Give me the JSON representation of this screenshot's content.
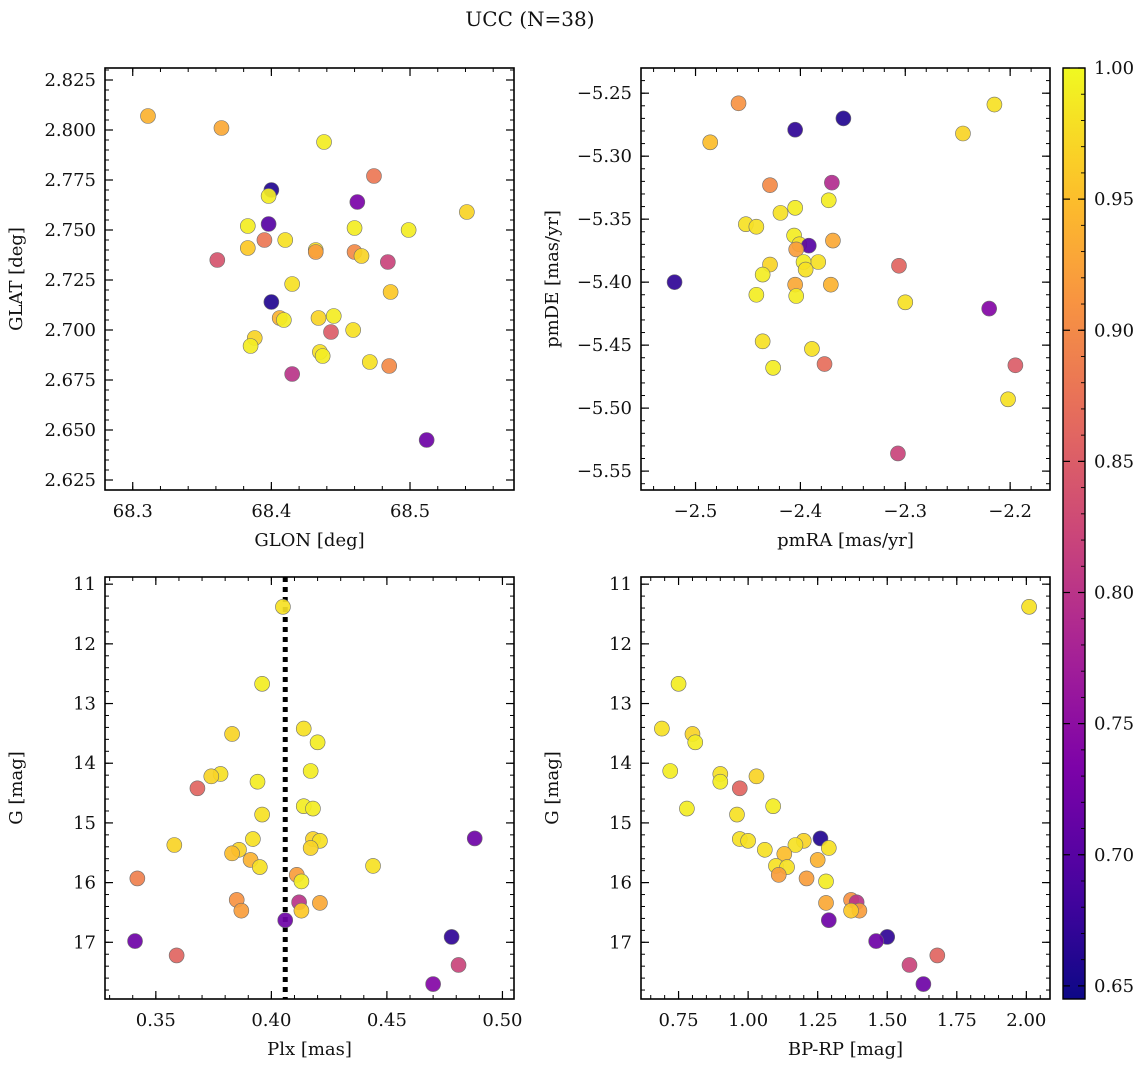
{
  "figure": {
    "title": "UCC (N=38)"
  },
  "colorbar": {
    "colormap": "plasma",
    "range": [
      0.645,
      1.0
    ],
    "ticks": [
      "1.00",
      "0.95",
      "0.90",
      "0.85",
      "0.80",
      "0.75",
      "0.70",
      "0.65"
    ]
  },
  "chart_data": [
    {
      "type": "scatter",
      "xlabel": "GLON [deg]",
      "ylabel": "GLAT [deg]",
      "xlim": [
        68.28,
        68.575
      ],
      "ylim": [
        2.62,
        2.831
      ],
      "xticks": [
        "68.3",
        "68.4",
        "68.5"
      ],
      "yticks": [
        "2.625",
        "2.650",
        "2.675",
        "2.700",
        "2.725",
        "2.750",
        "2.775",
        "2.800",
        "2.825"
      ],
      "points": [
        {
          "x": 68.311,
          "y": 2.807,
          "c": 0.94
        },
        {
          "x": 68.364,
          "y": 2.801,
          "c": 0.93
        },
        {
          "x": 68.438,
          "y": 2.794,
          "c": 0.99
        },
        {
          "x": 68.474,
          "y": 2.777,
          "c": 0.88
        },
        {
          "x": 68.4,
          "y": 2.77,
          "c": 0.66
        },
        {
          "x": 68.398,
          "y": 2.767,
          "c": 0.99
        },
        {
          "x": 68.462,
          "y": 2.764,
          "c": 0.73
        },
        {
          "x": 68.541,
          "y": 2.759,
          "c": 0.97
        },
        {
          "x": 68.398,
          "y": 2.753,
          "c": 0.7
        },
        {
          "x": 68.383,
          "y": 2.752,
          "c": 0.99
        },
        {
          "x": 68.46,
          "y": 2.751,
          "c": 0.99
        },
        {
          "x": 68.499,
          "y": 2.75,
          "c": 0.99
        },
        {
          "x": 68.395,
          "y": 2.745,
          "c": 0.88
        },
        {
          "x": 68.41,
          "y": 2.745,
          "c": 0.98
        },
        {
          "x": 68.383,
          "y": 2.741,
          "c": 0.96
        },
        {
          "x": 68.432,
          "y": 2.74,
          "c": 0.98
        },
        {
          "x": 68.432,
          "y": 2.739,
          "c": 0.92
        },
        {
          "x": 68.46,
          "y": 2.739,
          "c": 0.9
        },
        {
          "x": 68.465,
          "y": 2.737,
          "c": 0.97
        },
        {
          "x": 68.361,
          "y": 2.735,
          "c": 0.84
        },
        {
          "x": 68.484,
          "y": 2.734,
          "c": 0.82
        },
        {
          "x": 68.415,
          "y": 2.723,
          "c": 0.98
        },
        {
          "x": 68.486,
          "y": 2.719,
          "c": 0.96
        },
        {
          "x": 68.4,
          "y": 2.714,
          "c": 0.66
        },
        {
          "x": 68.445,
          "y": 2.707,
          "c": 0.99
        },
        {
          "x": 68.406,
          "y": 2.706,
          "c": 0.94
        },
        {
          "x": 68.409,
          "y": 2.705,
          "c": 0.99
        },
        {
          "x": 68.434,
          "y": 2.706,
          "c": 0.97
        },
        {
          "x": 68.459,
          "y": 2.7,
          "c": 0.98
        },
        {
          "x": 68.443,
          "y": 2.699,
          "c": 0.85
        },
        {
          "x": 68.388,
          "y": 2.696,
          "c": 0.97
        },
        {
          "x": 68.385,
          "y": 2.692,
          "c": 0.99
        },
        {
          "x": 68.435,
          "y": 2.689,
          "c": 0.98
        },
        {
          "x": 68.437,
          "y": 2.687,
          "c": 0.99
        },
        {
          "x": 68.471,
          "y": 2.684,
          "c": 0.98
        },
        {
          "x": 68.485,
          "y": 2.682,
          "c": 0.9
        },
        {
          "x": 68.415,
          "y": 2.678,
          "c": 0.8
        },
        {
          "x": 68.512,
          "y": 2.645,
          "c": 0.72
        }
      ]
    },
    {
      "type": "scatter",
      "xlabel": "pmRA [mas/yr]",
      "ylabel": "pmDE [mas/yr]",
      "xlim": [
        -2.552,
        -2.162
      ],
      "ylim": [
        -5.565,
        -5.23
      ],
      "xticks": [
        "−2.5",
        "−2.4",
        "−2.3",
        "−2.2"
      ],
      "yticks": [
        "−5.55",
        "−5.50",
        "−5.45",
        "−5.40",
        "−5.35",
        "−5.30",
        "−5.25"
      ],
      "points": [
        {
          "x": -2.459,
          "y": -5.258,
          "c": 0.91
        },
        {
          "x": -2.215,
          "y": -5.259,
          "c": 0.98
        },
        {
          "x": -2.359,
          "y": -5.27,
          "c": 0.66
        },
        {
          "x": -2.405,
          "y": -5.279,
          "c": 0.67
        },
        {
          "x": -2.245,
          "y": -5.282,
          "c": 0.97
        },
        {
          "x": -2.486,
          "y": -5.289,
          "c": 0.95
        },
        {
          "x": -2.37,
          "y": -5.321,
          "c": 0.79
        },
        {
          "x": -2.429,
          "y": -5.323,
          "c": 0.9
        },
        {
          "x": -2.373,
          "y": -5.335,
          "c": 0.99
        },
        {
          "x": -2.405,
          "y": -5.341,
          "c": 0.99
        },
        {
          "x": -2.419,
          "y": -5.345,
          "c": 0.98
        },
        {
          "x": -2.452,
          "y": -5.354,
          "c": 0.98
        },
        {
          "x": -2.442,
          "y": -5.356,
          "c": 0.98
        },
        {
          "x": -2.406,
          "y": -5.363,
          "c": 0.99
        },
        {
          "x": -2.369,
          "y": -5.367,
          "c": 0.93
        },
        {
          "x": -2.401,
          "y": -5.37,
          "c": 0.98
        },
        {
          "x": -2.392,
          "y": -5.371,
          "c": 0.7
        },
        {
          "x": -2.404,
          "y": -5.374,
          "c": 0.92
        },
        {
          "x": -2.383,
          "y": -5.384,
          "c": 0.98
        },
        {
          "x": -2.397,
          "y": -5.384,
          "c": 0.99
        },
        {
          "x": -2.395,
          "y": -5.39,
          "c": 0.98
        },
        {
          "x": -2.429,
          "y": -5.386,
          "c": 0.97
        },
        {
          "x": -2.306,
          "y": -5.387,
          "c": 0.86
        },
        {
          "x": -2.436,
          "y": -5.394,
          "c": 0.99
        },
        {
          "x": -2.52,
          "y": -5.4,
          "c": 0.67
        },
        {
          "x": -2.405,
          "y": -5.402,
          "c": 0.93
        },
        {
          "x": -2.371,
          "y": -5.402,
          "c": 0.94
        },
        {
          "x": -2.442,
          "y": -5.41,
          "c": 0.99
        },
        {
          "x": -2.404,
          "y": -5.411,
          "c": 0.99
        },
        {
          "x": -2.3,
          "y": -5.416,
          "c": 0.98
        },
        {
          "x": -2.22,
          "y": -5.421,
          "c": 0.74
        },
        {
          "x": -2.436,
          "y": -5.447,
          "c": 0.98
        },
        {
          "x": -2.389,
          "y": -5.453,
          "c": 0.98
        },
        {
          "x": -2.377,
          "y": -5.465,
          "c": 0.87
        },
        {
          "x": -2.195,
          "y": -5.466,
          "c": 0.85
        },
        {
          "x": -2.426,
          "y": -5.468,
          "c": 0.99
        },
        {
          "x": -2.202,
          "y": -5.493,
          "c": 0.98
        },
        {
          "x": -2.307,
          "y": -5.536,
          "c": 0.82
        }
      ]
    },
    {
      "type": "scatter",
      "xlabel": "Plx [mas]",
      "ylabel": "G [mag]",
      "xlim": [
        0.328,
        0.505
      ],
      "ylim": [
        17.95,
        10.88
      ],
      "y_inverted": true,
      "vline": {
        "x": 0.406,
        "style": "dotted",
        "color": "#000000"
      },
      "xticks": [
        "0.35",
        "0.40",
        "0.45",
        "0.50"
      ],
      "yticks": [
        "11",
        "12",
        "13",
        "14",
        "15",
        "16",
        "17"
      ],
      "points": [
        {
          "x": 0.405,
          "y": 11.38,
          "c": 0.98
        },
        {
          "x": 0.396,
          "y": 12.67,
          "c": 0.99
        },
        {
          "x": 0.414,
          "y": 13.42,
          "c": 0.98
        },
        {
          "x": 0.383,
          "y": 13.51,
          "c": 0.97
        },
        {
          "x": 0.42,
          "y": 13.65,
          "c": 0.99
        },
        {
          "x": 0.417,
          "y": 14.13,
          "c": 0.99
        },
        {
          "x": 0.378,
          "y": 14.18,
          "c": 0.98
        },
        {
          "x": 0.374,
          "y": 14.22,
          "c": 0.97
        },
        {
          "x": 0.394,
          "y": 14.31,
          "c": 0.99
        },
        {
          "x": 0.368,
          "y": 14.42,
          "c": 0.86
        },
        {
          "x": 0.414,
          "y": 14.72,
          "c": 0.99
        },
        {
          "x": 0.418,
          "y": 14.76,
          "c": 0.99
        },
        {
          "x": 0.396,
          "y": 14.86,
          "c": 0.98
        },
        {
          "x": 0.488,
          "y": 15.26,
          "c": 0.72
        },
        {
          "x": 0.392,
          "y": 15.27,
          "c": 0.98
        },
        {
          "x": 0.418,
          "y": 15.27,
          "c": 0.97
        },
        {
          "x": 0.421,
          "y": 15.3,
          "c": 0.98
        },
        {
          "x": 0.358,
          "y": 15.37,
          "c": 0.97
        },
        {
          "x": 0.417,
          "y": 15.42,
          "c": 0.97
        },
        {
          "x": 0.386,
          "y": 15.45,
          "c": 0.97
        },
        {
          "x": 0.383,
          "y": 15.51,
          "c": 0.95
        },
        {
          "x": 0.391,
          "y": 15.62,
          "c": 0.94
        },
        {
          "x": 0.444,
          "y": 15.72,
          "c": 0.98
        },
        {
          "x": 0.395,
          "y": 15.74,
          "c": 0.98
        },
        {
          "x": 0.411,
          "y": 15.87,
          "c": 0.92
        },
        {
          "x": 0.342,
          "y": 15.93,
          "c": 0.89
        },
        {
          "x": 0.413,
          "y": 15.98,
          "c": 0.99
        },
        {
          "x": 0.385,
          "y": 16.29,
          "c": 0.91
        },
        {
          "x": 0.412,
          "y": 16.33,
          "c": 0.8
        },
        {
          "x": 0.421,
          "y": 16.34,
          "c": 0.93
        },
        {
          "x": 0.387,
          "y": 16.47,
          "c": 0.92
        },
        {
          "x": 0.413,
          "y": 16.47,
          "c": 0.96
        },
        {
          "x": 0.406,
          "y": 16.63,
          "c": 0.72
        },
        {
          "x": 0.478,
          "y": 16.91,
          "c": 0.67
        },
        {
          "x": 0.341,
          "y": 16.98,
          "c": 0.72
        },
        {
          "x": 0.359,
          "y": 17.22,
          "c": 0.86
        },
        {
          "x": 0.481,
          "y": 17.38,
          "c": 0.82
        },
        {
          "x": 0.47,
          "y": 17.7,
          "c": 0.74
        }
      ]
    },
    {
      "type": "scatter",
      "xlabel": "BP-RP [mag]",
      "ylabel": "G [mag]",
      "xlim": [
        0.615,
        2.085
      ],
      "ylim": [
        17.95,
        10.88
      ],
      "y_inverted": true,
      "xticks": [
        "0.75",
        "1.00",
        "1.25",
        "1.50",
        "1.75",
        "2.00"
      ],
      "yticks": [
        "11",
        "12",
        "13",
        "14",
        "15",
        "16",
        "17"
      ],
      "points": [
        {
          "x": 2.01,
          "y": 11.38,
          "c": 0.98
        },
        {
          "x": 0.75,
          "y": 12.67,
          "c": 0.99
        },
        {
          "x": 0.69,
          "y": 13.42,
          "c": 0.98
        },
        {
          "x": 0.8,
          "y": 13.51,
          "c": 0.97
        },
        {
          "x": 0.81,
          "y": 13.65,
          "c": 0.99
        },
        {
          "x": 0.72,
          "y": 14.13,
          "c": 0.99
        },
        {
          "x": 0.9,
          "y": 14.18,
          "c": 0.98
        },
        {
          "x": 1.03,
          "y": 14.22,
          "c": 0.97
        },
        {
          "x": 0.9,
          "y": 14.31,
          "c": 0.99
        },
        {
          "x": 0.97,
          "y": 14.42,
          "c": 0.86
        },
        {
          "x": 0.78,
          "y": 14.76,
          "c": 0.99
        },
        {
          "x": 1.09,
          "y": 14.72,
          "c": 0.99
        },
        {
          "x": 0.96,
          "y": 14.86,
          "c": 0.98
        },
        {
          "x": 1.26,
          "y": 15.26,
          "c": 0.66
        },
        {
          "x": 0.97,
          "y": 15.27,
          "c": 0.98
        },
        {
          "x": 1.0,
          "y": 15.3,
          "c": 0.98
        },
        {
          "x": 1.2,
          "y": 15.3,
          "c": 0.97
        },
        {
          "x": 1.17,
          "y": 15.37,
          "c": 0.98
        },
        {
          "x": 1.29,
          "y": 15.42,
          "c": 0.98
        },
        {
          "x": 1.06,
          "y": 15.45,
          "c": 0.98
        },
        {
          "x": 1.13,
          "y": 15.52,
          "c": 0.95
        },
        {
          "x": 1.25,
          "y": 15.62,
          "c": 0.94
        },
        {
          "x": 1.1,
          "y": 15.72,
          "c": 0.98
        },
        {
          "x": 1.14,
          "y": 15.74,
          "c": 0.98
        },
        {
          "x": 1.11,
          "y": 15.87,
          "c": 0.92
        },
        {
          "x": 1.21,
          "y": 15.93,
          "c": 0.92
        },
        {
          "x": 1.28,
          "y": 15.98,
          "c": 0.99
        },
        {
          "x": 1.37,
          "y": 16.29,
          "c": 0.91
        },
        {
          "x": 1.39,
          "y": 16.33,
          "c": 0.8
        },
        {
          "x": 1.28,
          "y": 16.34,
          "c": 0.93
        },
        {
          "x": 1.4,
          "y": 16.47,
          "c": 0.92
        },
        {
          "x": 1.37,
          "y": 16.47,
          "c": 0.96
        },
        {
          "x": 1.29,
          "y": 16.63,
          "c": 0.72
        },
        {
          "x": 1.5,
          "y": 16.91,
          "c": 0.67
        },
        {
          "x": 1.46,
          "y": 16.98,
          "c": 0.72
        },
        {
          "x": 1.68,
          "y": 17.22,
          "c": 0.86
        },
        {
          "x": 1.58,
          "y": 17.38,
          "c": 0.82
        },
        {
          "x": 1.63,
          "y": 17.7,
          "c": 0.72
        }
      ]
    }
  ]
}
